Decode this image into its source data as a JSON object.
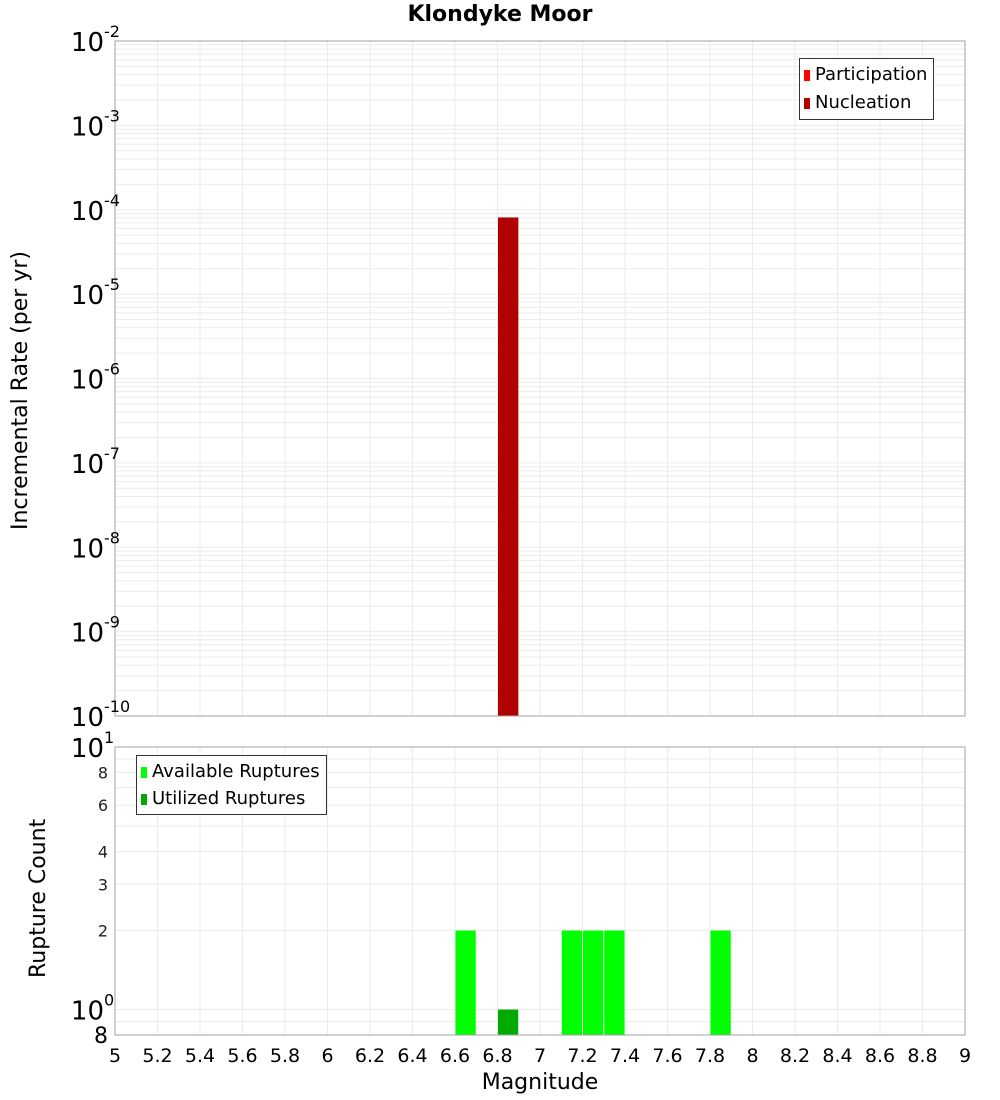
{
  "title": "Klondyke Moor",
  "top_chart": {
    "ylabel": "Incremental Rate (per yr)",
    "legend": [
      {
        "label": "Participation",
        "color": "#ff0000"
      },
      {
        "label": "Nucleation",
        "color": "#b00000"
      }
    ]
  },
  "bottom_chart": {
    "ylabel": "Rupture Count",
    "xlabel": "Magnitude",
    "legend": [
      {
        "label": "Available Ruptures",
        "color": "#00ff00"
      },
      {
        "label": "Utilized Ruptures",
        "color": "#00aa00"
      }
    ]
  },
  "chart_data": [
    {
      "type": "bar",
      "title": "Klondyke Moor",
      "xlabel": "",
      "ylabel": "Incremental Rate (per yr)",
      "yscale": "log",
      "xlim": [
        5,
        9
      ],
      "ylim": [
        1e-10,
        0.01
      ],
      "y_tick_labels": [
        "10^-2",
        "10^-3",
        "10^-4",
        "10^-5",
        "10^-6",
        "10^-7",
        "10^-8",
        "10^-9",
        "10^-10"
      ],
      "grid": true,
      "legend_position": "top-right",
      "bar_width": 0.1,
      "series": [
        {
          "name": "Participation",
          "color": "#ff0000",
          "x": [
            6.85
          ],
          "values": [
            8.1e-05
          ]
        },
        {
          "name": "Nucleation",
          "color": "#b00000",
          "x": [
            6.85
          ],
          "values": [
            8.1e-05
          ]
        }
      ]
    },
    {
      "type": "bar",
      "title": "",
      "xlabel": "Magnitude",
      "ylabel": "Rupture Count",
      "yscale": "log",
      "xlim": [
        5,
        9
      ],
      "ylim": [
        0.8,
        10
      ],
      "x_tick_labels": [
        "5",
        "5.2",
        "5.4",
        "5.6",
        "5.8",
        "6",
        "6.2",
        "6.4",
        "6.6",
        "6.8",
        "7",
        "7.2",
        "7.4",
        "7.6",
        "7.8",
        "8",
        "8.2",
        "8.4",
        "8.6",
        "8.8",
        "9"
      ],
      "y_tick_labels": [
        "8",
        "10^0",
        "2",
        "3",
        "4",
        "6",
        "8",
        "10^1"
      ],
      "grid": true,
      "legend_position": "top-left",
      "bar_width": 0.1,
      "series": [
        {
          "name": "Available Ruptures",
          "color": "#00ff00",
          "x": [
            6.65,
            7.15,
            7.25,
            7.35,
            7.85
          ],
          "values": [
            2,
            2,
            2,
            2,
            2
          ]
        },
        {
          "name": "Utilized Ruptures",
          "color": "#00aa00",
          "x": [
            6.85
          ],
          "values": [
            1
          ]
        }
      ]
    }
  ]
}
